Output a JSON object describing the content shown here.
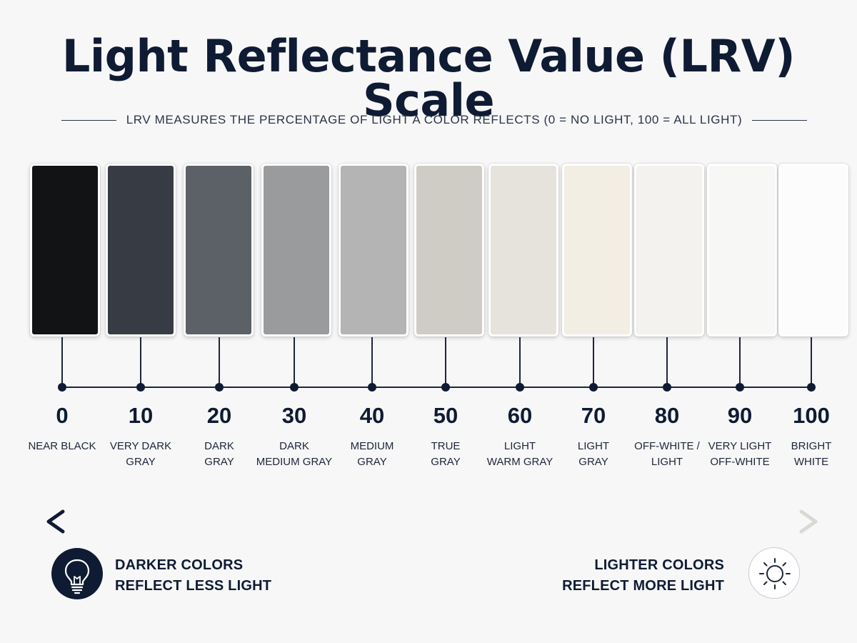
{
  "title": "Light Reflectance Value (LRV) Scale",
  "subtitle": "LRV MEASURES THE PERCENTAGE OF LIGHT A COLOR REFLECTS (0 = NO LIGHT, 100 = ALL LIGHT)",
  "stops": [
    {
      "value": "0",
      "line1": "NEAR BLACK",
      "line2": "",
      "color": "#121314"
    },
    {
      "value": "10",
      "line1": "VERY DARK",
      "line2": "GRAY",
      "color": "#373c44"
    },
    {
      "value": "20",
      "line1": "DARK",
      "line2": "GRAY",
      "color": "#5c6067"
    },
    {
      "value": "30",
      "line1": "DARK",
      "line2": "MEDIUM GRAY",
      "color": "#9a9b9d"
    },
    {
      "value": "40",
      "line1": "MEDIUM",
      "line2": "GRAY",
      "color": "#b4b4b5"
    },
    {
      "value": "50",
      "line1": "TRUE",
      "line2": "GRAY",
      "color": "#cfccc5"
    },
    {
      "value": "60",
      "line1": "LIGHT",
      "line2": "WARM GRAY",
      "color": "#e6e3dc"
    },
    {
      "value": "70",
      "line1": "LIGHT",
      "line2": "GRAY",
      "color": "#f2eee4"
    },
    {
      "value": "80",
      "line1": "OFF-WHITE /",
      "line2": "LIGHT",
      "color": "#f3f2ef"
    },
    {
      "value": "90",
      "line1": "VERY LIGHT",
      "line2": "OFF-WHITE",
      "color": "#f7f7f6"
    },
    {
      "value": "100",
      "line1": "BRIGHT",
      "line2": "WHITE",
      "color": "#fcfcfc"
    }
  ],
  "left_caption": {
    "line1": "DARKER COLORS",
    "line2": "REFLECT LESS LIGHT",
    "icon": "lightbulb-icon"
  },
  "right_caption": {
    "line1": "LIGHTER COLORS",
    "line2": "REFLECT MORE LIGHT",
    "icon": "sun-icon"
  },
  "colors": {
    "navy": "#0f1b33",
    "arrow_end": "#d9d8d2"
  }
}
